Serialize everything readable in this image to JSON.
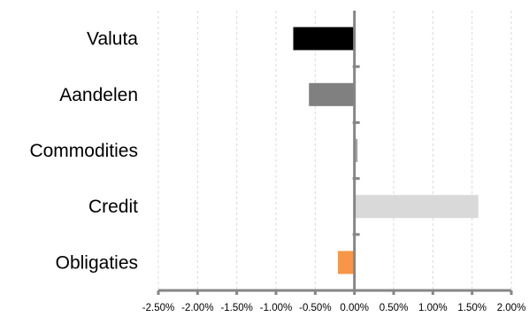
{
  "chart_data": {
    "type": "bar",
    "orientation": "horizontal",
    "categories": [
      "Valuta",
      "Aandelen",
      "Commodities",
      "Credit",
      "Obligaties"
    ],
    "values": [
      -0.0078,
      -0.0058,
      0.0004,
      0.0158,
      -0.0021
    ],
    "colors": [
      "#000000",
      "#808080",
      "#a6a6a6",
      "#d9d9d9",
      "#f79646"
    ],
    "xlim": [
      -0.025,
      0.02
    ],
    "xticks": [
      -0.025,
      -0.02,
      -0.015,
      -0.01,
      -0.005,
      0.0,
      0.005,
      0.01,
      0.015,
      0.02
    ],
    "xtick_labels": [
      "-2.50%",
      "-2.00%",
      "-1.50%",
      "-1.00%",
      "-0.50%",
      "0.00%",
      "0.50%",
      "1.00%",
      "1.50%",
      "2.00%"
    ],
    "title": "",
    "xlabel": "",
    "ylabel": "",
    "grid": "vertical dashed",
    "legend": "none"
  }
}
